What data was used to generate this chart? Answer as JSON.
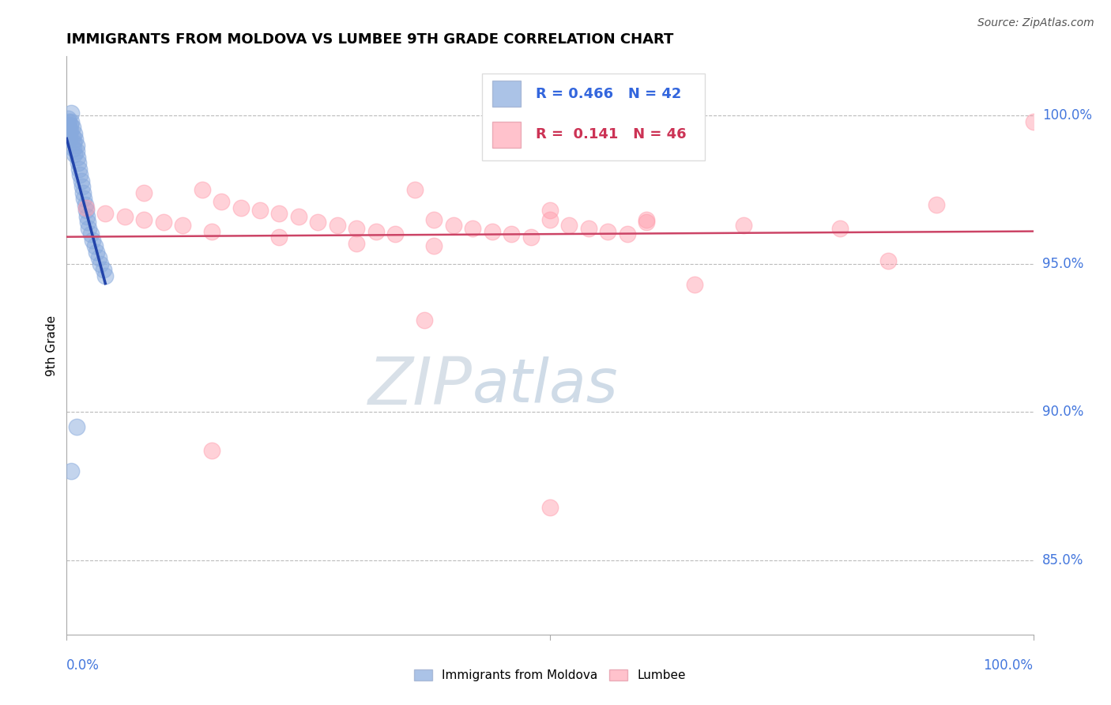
{
  "title": "IMMIGRANTS FROM MOLDOVA VS LUMBEE 9TH GRADE CORRELATION CHART",
  "source": "Source: ZipAtlas.com",
  "ylabel": "9th Grade",
  "legend_blue_label": "Immigrants from Moldova",
  "legend_pink_label": "Lumbee",
  "blue_R": "0.466",
  "blue_N": "42",
  "pink_R": "0.141",
  "pink_N": "46",
  "blue_color": "#88AADD",
  "pink_color": "#FF9AAA",
  "blue_line_color": "#2244AA",
  "pink_line_color": "#CC4466",
  "watermark_color": "#C8D8EE",
  "ytick_values": [
    1.0,
    0.95,
    0.9,
    0.85
  ],
  "ytick_labels": [
    "100.0%",
    "95.0%",
    "90.0%",
    "85.0%"
  ],
  "xlim": [
    0.0,
    1.0
  ],
  "ylim": [
    0.825,
    1.02
  ],
  "blue_x": [
    0.001,
    0.001,
    0.002,
    0.002,
    0.003,
    0.003,
    0.004,
    0.004,
    0.005,
    0.005,
    0.006,
    0.006,
    0.007,
    0.007,
    0.008,
    0.008,
    0.009,
    0.01,
    0.01,
    0.011,
    0.012,
    0.013,
    0.014,
    0.015,
    0.016,
    0.017,
    0.018,
    0.019,
    0.02,
    0.021,
    0.022,
    0.023,
    0.025,
    0.027,
    0.029,
    0.031,
    0.033,
    0.035,
    0.038,
    0.04,
    0.01,
    0.005
  ],
  "blue_y": [
    0.997,
    0.999,
    0.998,
    0.996,
    0.994,
    0.992,
    0.997,
    0.995,
    1.001,
    0.998,
    0.996,
    0.993,
    0.991,
    0.989,
    0.987,
    0.994,
    0.992,
    0.99,
    0.988,
    0.986,
    0.984,
    0.982,
    0.98,
    0.978,
    0.976,
    0.974,
    0.972,
    0.97,
    0.968,
    0.966,
    0.964,
    0.962,
    0.96,
    0.958,
    0.956,
    0.954,
    0.952,
    0.95,
    0.948,
    0.946,
    0.895,
    0.88
  ],
  "pink_x": [
    0.02,
    0.04,
    0.06,
    0.08,
    0.1,
    0.12,
    0.14,
    0.16,
    0.18,
    0.2,
    0.22,
    0.24,
    0.26,
    0.28,
    0.3,
    0.32,
    0.34,
    0.36,
    0.38,
    0.4,
    0.42,
    0.44,
    0.46,
    0.48,
    0.5,
    0.52,
    0.54,
    0.56,
    0.58,
    0.6,
    0.08,
    0.15,
    0.22,
    0.3,
    0.38,
    0.5,
    0.6,
    0.7,
    0.8,
    0.85,
    0.9,
    1.0,
    0.15,
    0.37,
    0.5,
    0.65
  ],
  "pink_y": [
    0.969,
    0.967,
    0.966,
    0.965,
    0.964,
    0.963,
    0.975,
    0.971,
    0.969,
    0.968,
    0.967,
    0.966,
    0.964,
    0.963,
    0.962,
    0.961,
    0.96,
    0.975,
    0.965,
    0.963,
    0.962,
    0.961,
    0.96,
    0.959,
    0.968,
    0.963,
    0.962,
    0.961,
    0.96,
    0.965,
    0.974,
    0.961,
    0.959,
    0.957,
    0.956,
    0.965,
    0.964,
    0.963,
    0.962,
    0.951,
    0.97,
    0.998,
    0.887,
    0.931,
    0.868,
    0.943
  ]
}
